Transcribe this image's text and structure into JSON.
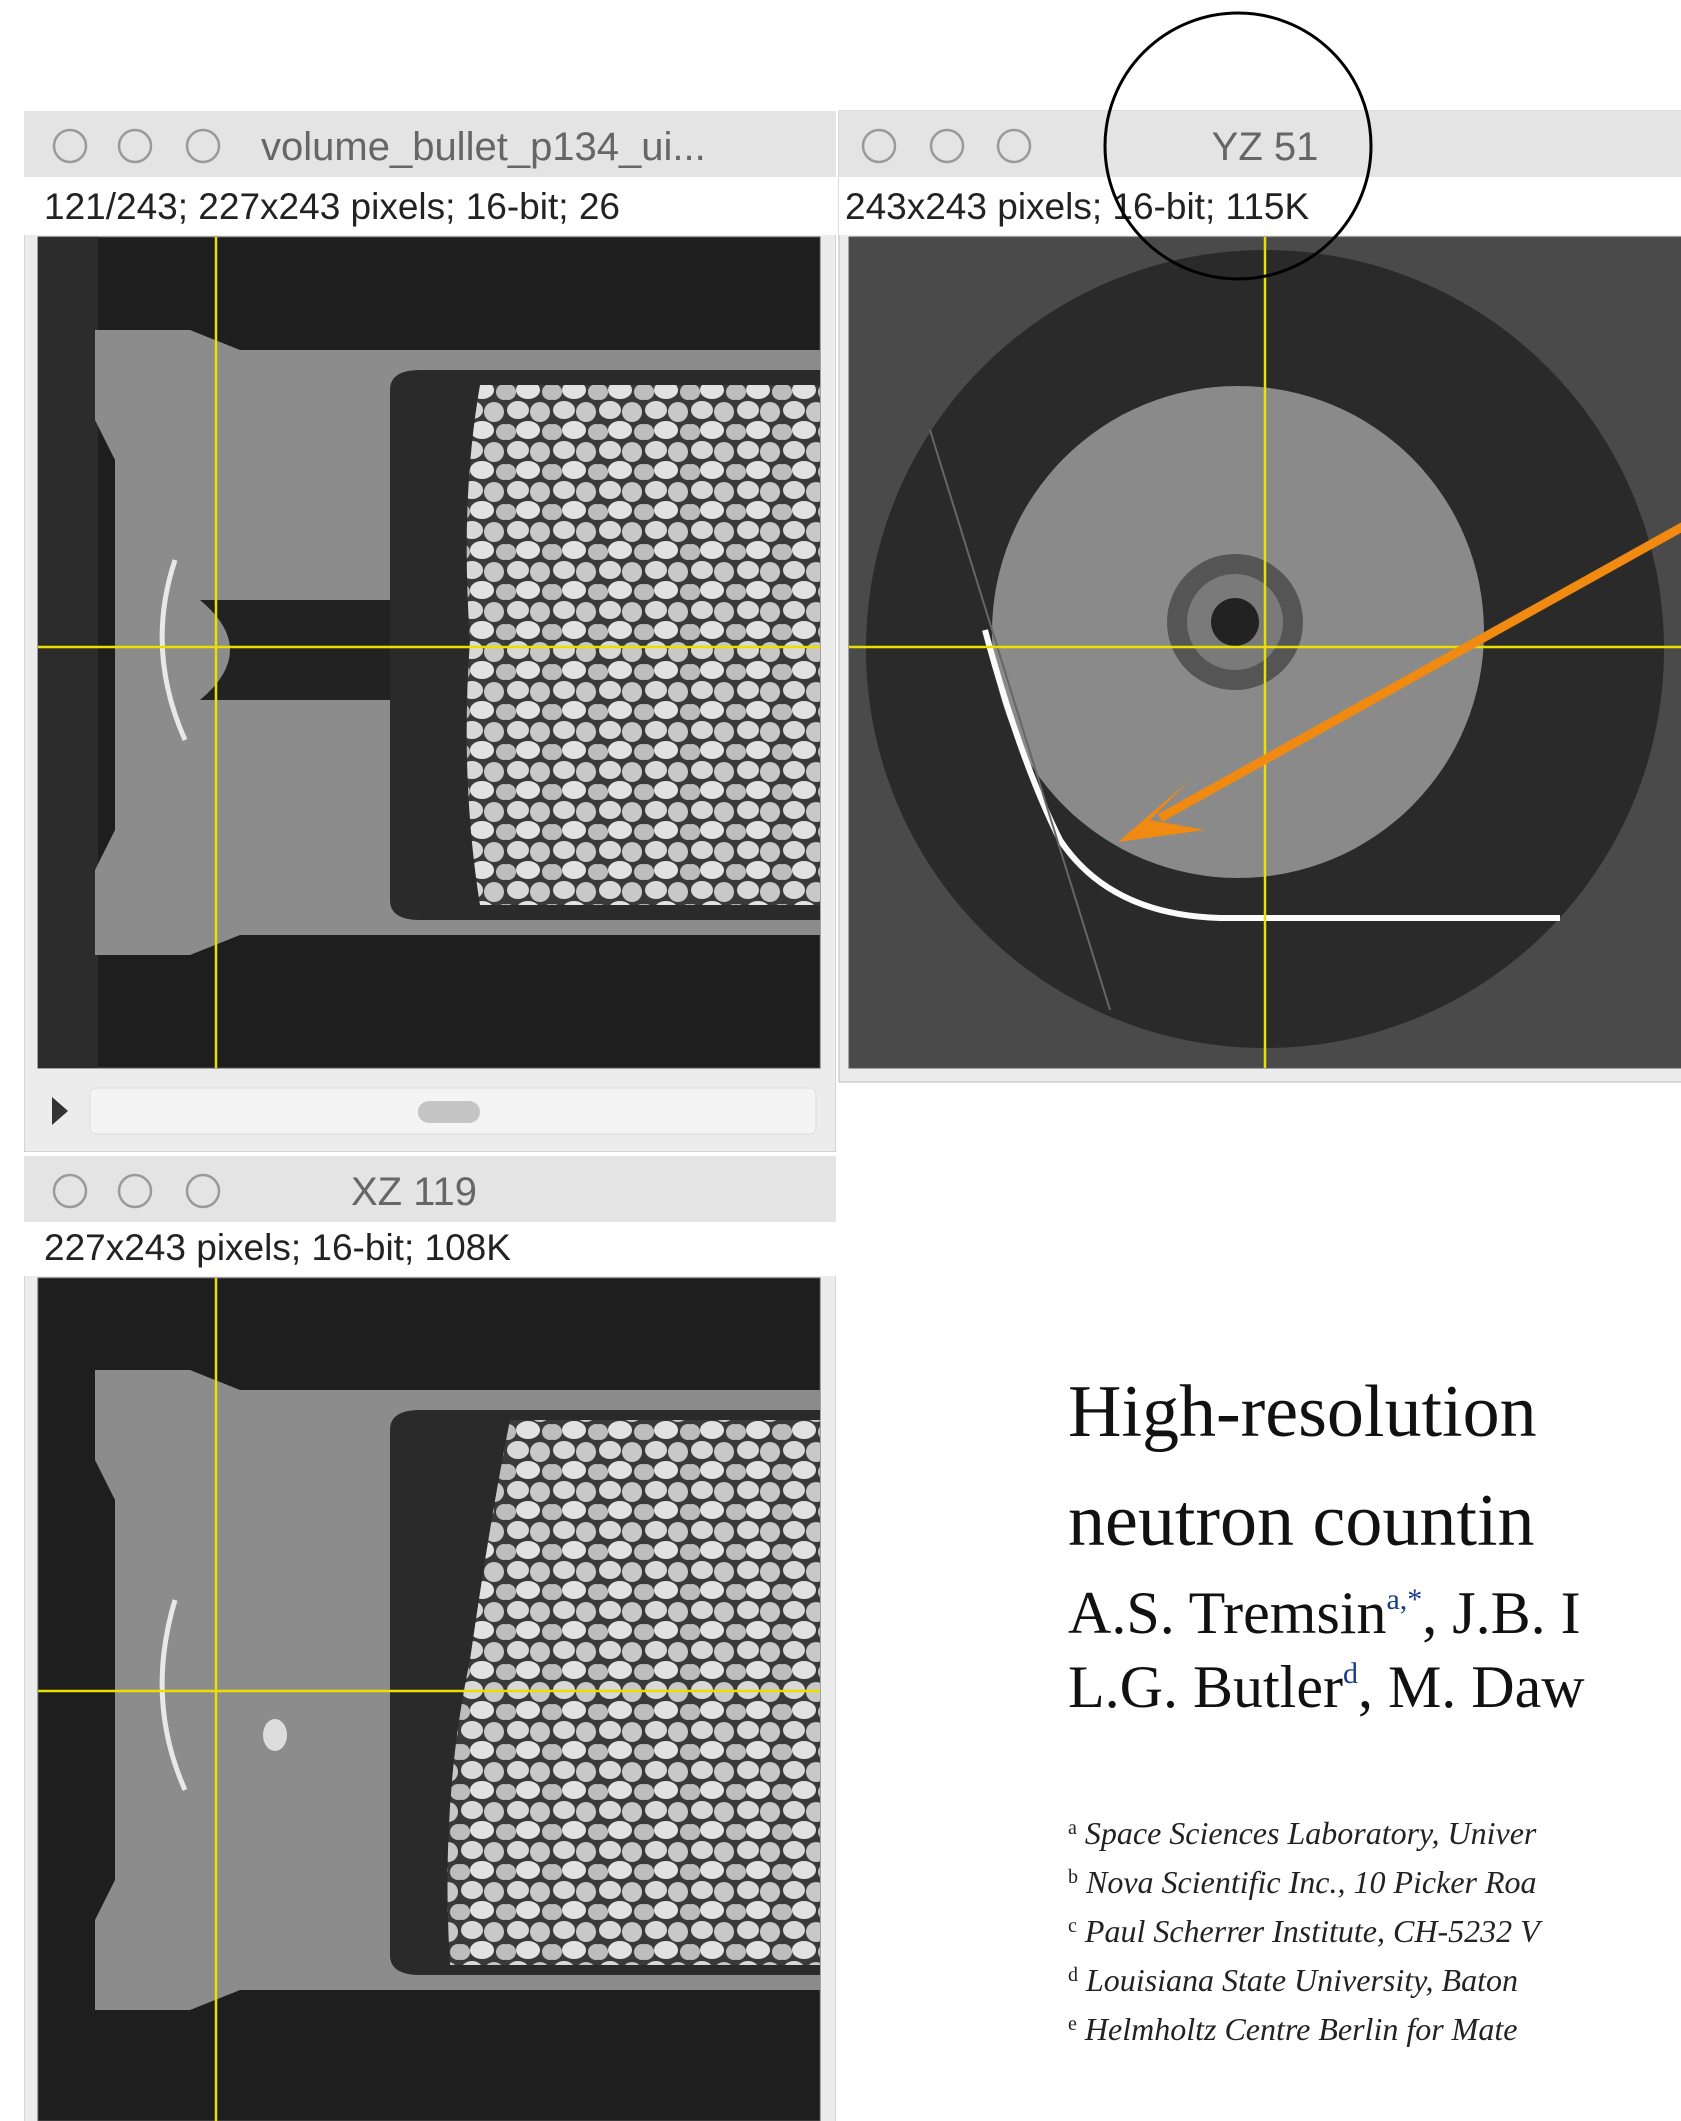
{
  "windows": [
    {
      "title": "volume_bullet_p134_ui...",
      "info": "121/243; 227x243 pixels; 16-bit; 26"
    },
    {
      "title": "YZ 51",
      "info": "243x243 pixels; 16-bit; 115K"
    },
    {
      "title": "XZ 119",
      "info": "227x243 pixels; 16-bit; 108K"
    }
  ],
  "paper": {
    "title_lines": [
      "High-resolution",
      "neutron countin"
    ],
    "author_lines": [
      [
        "A.S. Tremsin",
        "a,*",
        ", J.B. I"
      ],
      [
        "L.G. Butler",
        "d",
        ", M. Daw"
      ]
    ],
    "affiliations": [
      {
        "mark": "a",
        "text": "Space Sciences Laboratory, Univer"
      },
      {
        "mark": "b",
        "text": "Nova Scientific Inc., 10 Picker Roa"
      },
      {
        "mark": "c",
        "text": "Paul Scherrer Institute, CH-5232 V"
      },
      {
        "mark": "d",
        "text": "Louisiana State University, Baton"
      },
      {
        "mark": "e",
        "text": "Helmholtz Centre Berlin for Mate"
      }
    ]
  }
}
